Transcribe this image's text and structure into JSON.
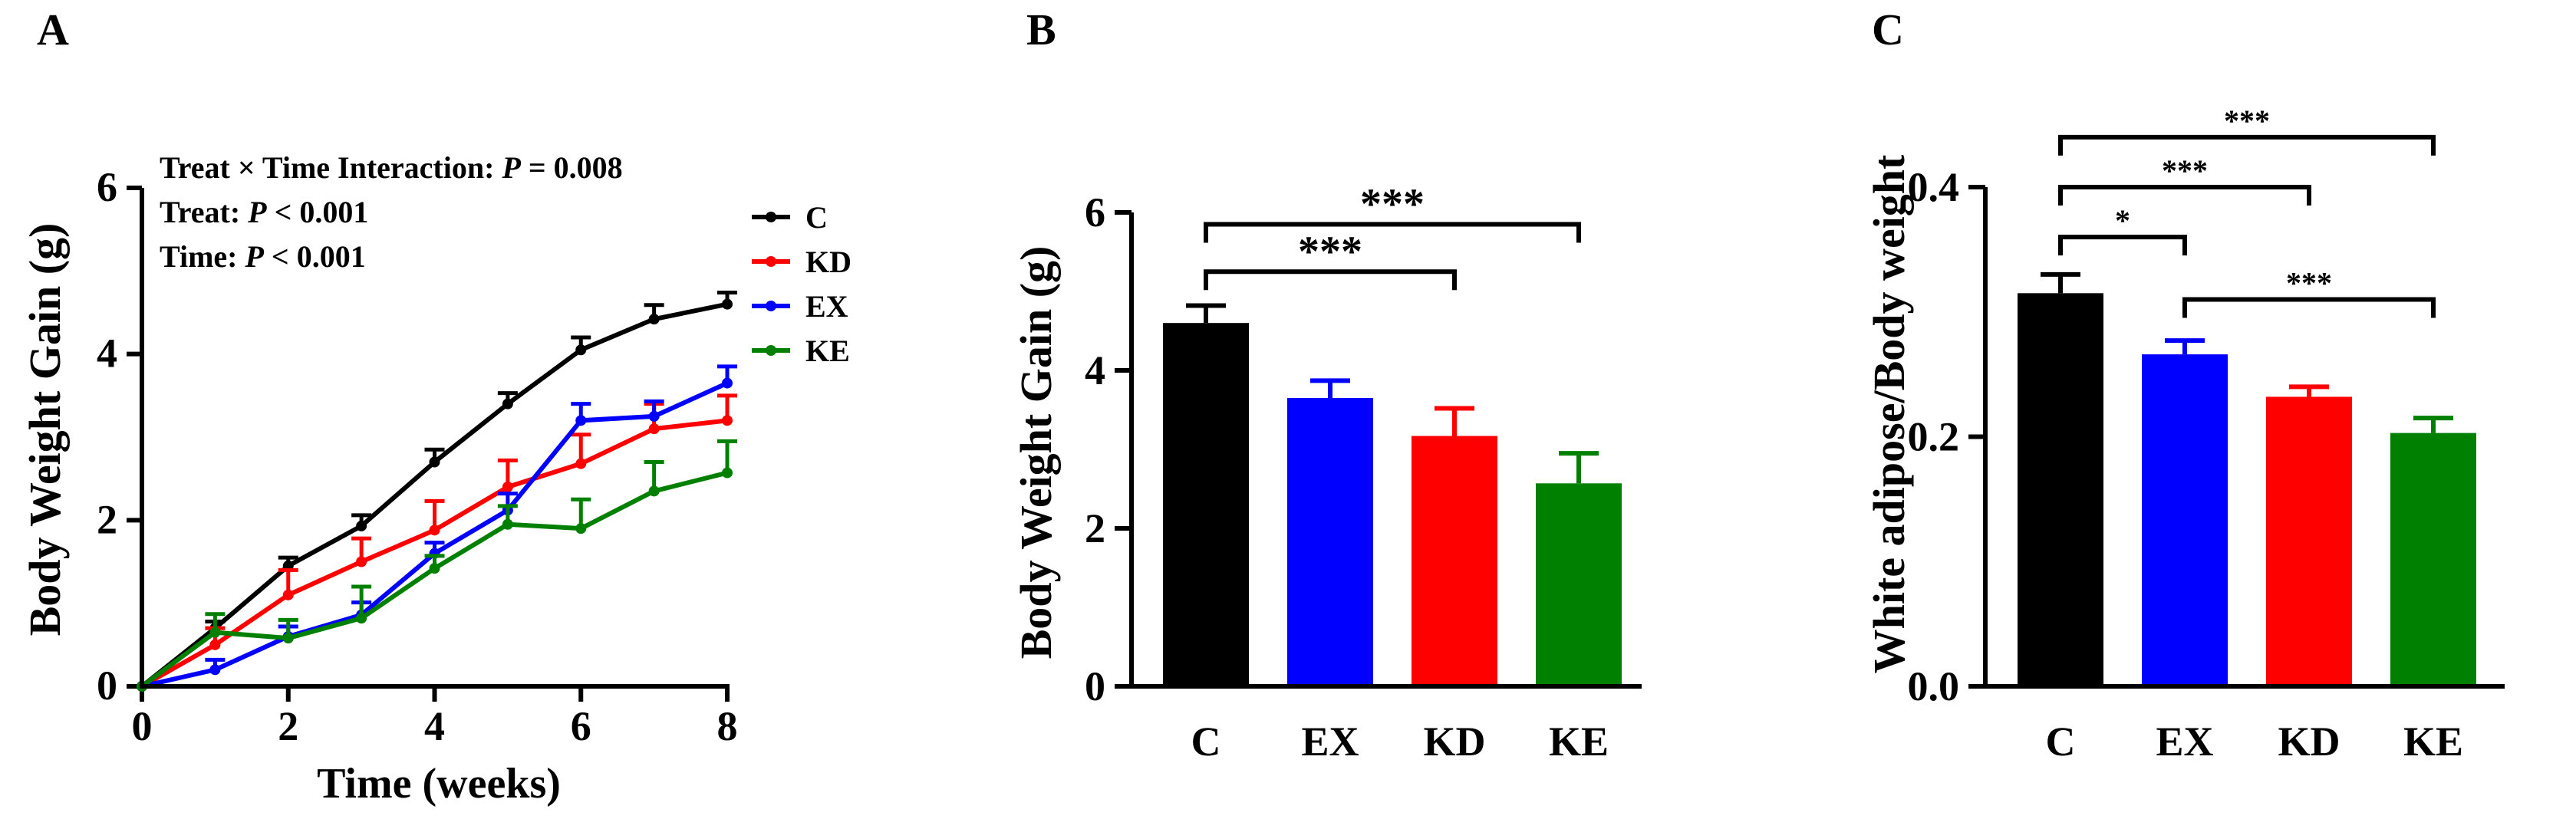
{
  "panels": {
    "A": {
      "letter": "A"
    },
    "B": {
      "letter": "B"
    },
    "C": {
      "letter": "C"
    }
  },
  "stats": {
    "line1_prefix": "Treat × Time Interaction: ",
    "line1_p": "P",
    "line1_suffix": " = 0.008",
    "line2_prefix": "Treat: ",
    "line2_p": "P",
    "line2_suffix": " < 0.001",
    "line3_prefix": "Time: ",
    "line3_p": "P",
    "line3_suffix": " < 0.001"
  },
  "chart_data": [
    {
      "type": "line",
      "panel": "A",
      "title": "",
      "xlabel": "Time (weeks)",
      "ylabel": "Body Weight Gain (g)",
      "xlim": [
        0,
        8
      ],
      "ylim": [
        0,
        6
      ],
      "xticks": [
        0,
        2,
        4,
        6,
        8
      ],
      "yticks": [
        0,
        2,
        4,
        6
      ],
      "legend_position": "right",
      "x": [
        0,
        1,
        2,
        3,
        4,
        5,
        6,
        7,
        8
      ],
      "series": [
        {
          "name": "C",
          "color": "#000000",
          "values": [
            0,
            0.7,
            1.45,
            1.93,
            2.7,
            3.4,
            4.05,
            4.42,
            4.6
          ],
          "errors": [
            0,
            0.08,
            0.1,
            0.13,
            0.15,
            0.13,
            0.15,
            0.17,
            0.14
          ]
        },
        {
          "name": "KD",
          "color": "#ff0000",
          "values": [
            0,
            0.5,
            1.1,
            1.5,
            1.88,
            2.4,
            2.68,
            3.1,
            3.2
          ],
          "errors": [
            0,
            0.2,
            0.3,
            0.28,
            0.35,
            0.32,
            0.35,
            0.3,
            0.3
          ]
        },
        {
          "name": "EX",
          "color": "#0000ff",
          "values": [
            0,
            0.2,
            0.6,
            0.86,
            1.6,
            2.12,
            3.2,
            3.25,
            3.65
          ],
          "errors": [
            0,
            0.12,
            0.12,
            0.15,
            0.13,
            0.2,
            0.2,
            0.18,
            0.2
          ]
        },
        {
          "name": "KE",
          "color": "#008000",
          "values": [
            0,
            0.65,
            0.58,
            0.82,
            1.42,
            1.95,
            1.9,
            2.35,
            2.57
          ],
          "errors": [
            0,
            0.22,
            0.22,
            0.38,
            0.15,
            0.22,
            0.35,
            0.35,
            0.38
          ]
        }
      ]
    },
    {
      "type": "bar",
      "panel": "B",
      "title": "",
      "xlabel": "",
      "ylabel": "Body Weight Gain (g)",
      "ylim": [
        0,
        6
      ],
      "yticks": [
        0,
        2,
        4,
        6
      ],
      "categories": [
        "C",
        "EX",
        "KD",
        "KE"
      ],
      "values": [
        4.6,
        3.65,
        3.17,
        2.57
      ],
      "errors": [
        0.22,
        0.22,
        0.35,
        0.38
      ],
      "colors": [
        "#000000",
        "#0000ff",
        "#ff0000",
        "#008000"
      ],
      "significance": [
        {
          "from": "C",
          "to": "KD",
          "label": "***",
          "level": 5.25
        },
        {
          "from": "C",
          "to": "KE",
          "label": "***",
          "level": 5.85
        }
      ]
    },
    {
      "type": "bar",
      "panel": "C",
      "title": "",
      "xlabel": "",
      "ylabel": "White adipose/Body weight",
      "ylim": [
        0,
        0.4
      ],
      "yticks": [
        0.0,
        0.2,
        0.4
      ],
      "ytick_labels": [
        "0.0",
        "0.2",
        "0.4"
      ],
      "categories": [
        "C",
        "EX",
        "KD",
        "KE"
      ],
      "values": [
        0.315,
        0.266,
        0.232,
        0.203
      ],
      "errors": [
        0.015,
        0.011,
        0.008,
        0.012
      ],
      "colors": [
        "#000000",
        "#0000ff",
        "#ff0000",
        "#008000"
      ],
      "significance": [
        {
          "from": "C",
          "to": "EX",
          "label": "*",
          "level": 0.36
        },
        {
          "from": "C",
          "to": "KD",
          "label": "***",
          "level": 0.4
        },
        {
          "from": "C",
          "to": "KE",
          "label": "***",
          "level": 0.44
        },
        {
          "from": "EX",
          "to": "KE",
          "label": "***",
          "level": 0.31
        }
      ]
    }
  ]
}
